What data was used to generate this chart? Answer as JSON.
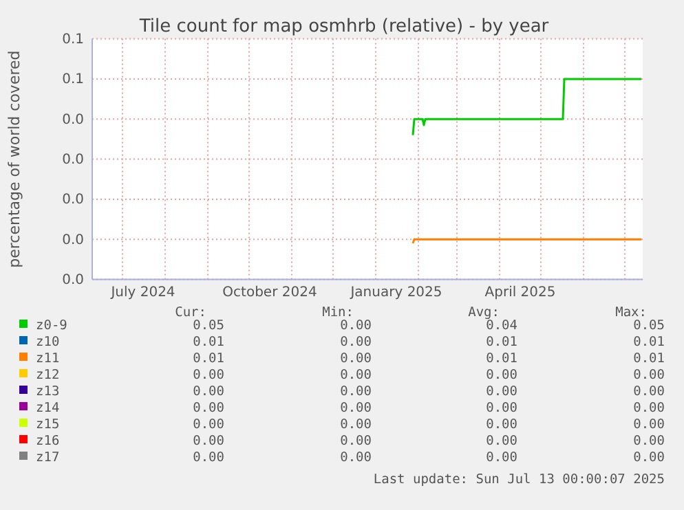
{
  "chart_data": {
    "type": "line",
    "title": "Tile count for map osmhrb (relative) - by year",
    "ylabel": "percentage of world covered",
    "xlim": [
      "2024-06-09",
      "2025-07-14"
    ],
    "xticks": [
      {
        "value": "2024-07-01",
        "label": null
      },
      {
        "value": "2024-07-16",
        "label": "July 2024"
      },
      {
        "value": "2024-08-01",
        "label": null
      },
      {
        "value": "2024-09-01",
        "label": null
      },
      {
        "value": "2024-10-01",
        "label": null
      },
      {
        "value": "2024-10-16",
        "label": "October 2024"
      },
      {
        "value": "2024-11-01",
        "label": null
      },
      {
        "value": "2024-12-01",
        "label": null
      },
      {
        "value": "2025-01-01",
        "label": null
      },
      {
        "value": "2025-01-16",
        "label": "January 2025"
      },
      {
        "value": "2025-02-01",
        "label": null
      },
      {
        "value": "2025-03-01",
        "label": null
      },
      {
        "value": "2025-04-01",
        "label": null
      },
      {
        "value": "2025-04-16",
        "label": "April 2025"
      },
      {
        "value": "2025-05-01",
        "label": null
      },
      {
        "value": "2025-06-01",
        "label": null
      },
      {
        "value": "2025-07-01",
        "label": null
      }
    ],
    "ylim": [
      0,
      0.06
    ],
    "yticks": [
      {
        "value": 0,
        "label": "0.0"
      },
      {
        "value": 0.01,
        "label": "0.0"
      },
      {
        "value": 0.02,
        "label": "0.0"
      },
      {
        "value": 0.03,
        "label": "0.0"
      },
      {
        "value": 0.04,
        "label": "0.0"
      },
      {
        "value": 0.05,
        "label": "0.1"
      },
      {
        "value": 0.06,
        "label": "0.1"
      }
    ],
    "grid": true,
    "legend": "bottom",
    "line_style": "solid",
    "marker": "none",
    "series": [
      {
        "name": "z0-9",
        "color": "#00cc00",
        "x": [
          "2025-01-28",
          "2025-01-29",
          "2025-02-04",
          "2025-02-05",
          "2025-02-06",
          "2025-05-17",
          "2025-05-18",
          "2025-07-13"
        ],
        "values": [
          0.036,
          0.04,
          0.04,
          0.0385,
          0.04,
          0.04,
          0.05,
          0.05
        ]
      },
      {
        "name": "z10",
        "color": "#0066b3"
      },
      {
        "name": "z11",
        "color": "#ff8000",
        "x": [
          "2025-01-28",
          "2025-01-29",
          "2025-07-13"
        ],
        "values": [
          0.009,
          0.01,
          0.01
        ]
      },
      {
        "name": "z12",
        "color": "#ffcc00"
      },
      {
        "name": "z13",
        "color": "#330099"
      },
      {
        "name": "z14",
        "color": "#990099"
      },
      {
        "name": "z15",
        "color": "#ccff00"
      },
      {
        "name": "z16",
        "color": "#ff0000"
      },
      {
        "name": "z17",
        "color": "#808080"
      }
    ],
    "annotations": [
      "Cur:",
      "Min:",
      "Avg:",
      "Max:",
      "0.05",
      "0.00",
      "0.04",
      "0.05",
      "0.01",
      "0.00",
      "0.01",
      "0.01",
      "0.01",
      "0.00",
      "0.01",
      "0.01",
      "0.00",
      "0.00",
      "0.00",
      "0.00",
      "0.00",
      "0.00",
      "0.00",
      "0.00",
      "0.00",
      "0.00",
      "0.00",
      "0.00",
      "0.00",
      "0.00",
      "0.00",
      "0.00",
      "0.00",
      "0.00",
      "0.00",
      "0.00",
      "0.00",
      "0.00",
      "0.00",
      "0.00",
      "Last update: Sun Jul 13 00:00:07 2025"
    ]
  }
}
